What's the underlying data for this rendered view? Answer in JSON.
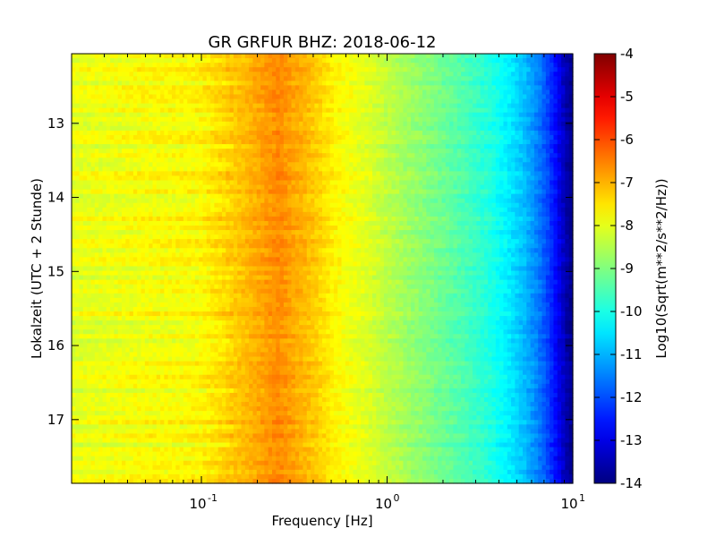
{
  "chart_data": {
    "type": "heatmap",
    "title": "GR GRFUR BHZ: 2018-06-12",
    "xlabel": "Frequency [Hz]",
    "ylabel": "Lokalzeit (UTC + 2 Stunde)",
    "colorbar_label": "Log10(Sqrt(m**2/s**2/Hz))",
    "x_scale": "log",
    "xlim": [
      0.02,
      10
    ],
    "ylim": [
      12.06,
      17.86
    ],
    "y_inverted": true,
    "clim": [
      -14,
      -4
    ],
    "colormap": "jet",
    "x_ticks": [
      {
        "value": 0.1,
        "base": "10",
        "exp": "-1"
      },
      {
        "value": 1,
        "base": "10",
        "exp": "0"
      },
      {
        "value": 10,
        "base": "10",
        "exp": "1"
      }
    ],
    "y_ticks": [
      "13",
      "14",
      "15",
      "16",
      "17"
    ],
    "colorbar_ticks": [
      "-4",
      "-5",
      "-6",
      "-7",
      "-8",
      "-9",
      "-10",
      "-11",
      "-12",
      "-13",
      "-14"
    ],
    "spectrum_profile": {
      "frequency_hz": [
        0.02,
        0.035,
        0.05,
        0.07,
        0.1,
        0.13,
        0.17,
        0.22,
        0.26,
        0.32,
        0.4,
        0.5,
        0.65,
        0.8,
        1.0,
        1.3,
        1.7,
        2.2,
        2.8,
        3.5,
        4.5,
        5.5,
        6.5,
        7.5,
        8.5,
        9.3,
        10.0
      ],
      "log10_amplitude": [
        -8.0,
        -7.9,
        -7.8,
        -7.8,
        -7.7,
        -7.4,
        -7.1,
        -6.8,
        -6.6,
        -6.9,
        -7.2,
        -7.6,
        -7.9,
        -8.1,
        -8.4,
        -8.7,
        -9.0,
        -9.3,
        -9.6,
        -9.9,
        -10.4,
        -10.9,
        -11.5,
        -12.2,
        -13.0,
        -13.6,
        -13.9
      ]
    },
    "time_rows": 95
  }
}
